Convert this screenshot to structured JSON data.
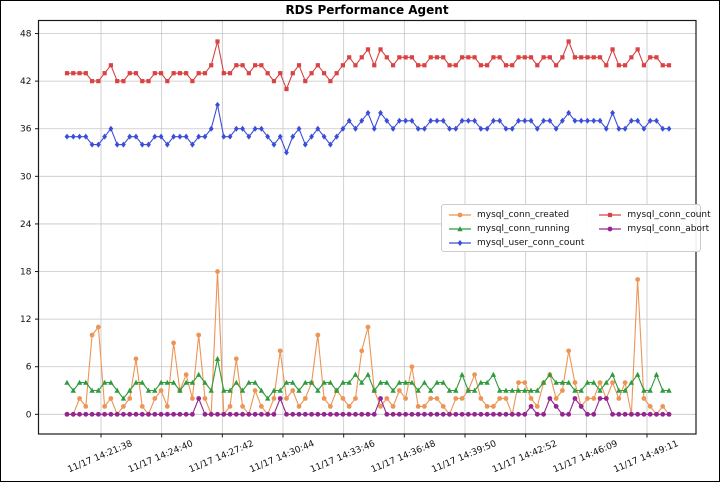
{
  "chart_data": {
    "type": "line",
    "title": "RDS Performance Agent",
    "xlabel": "",
    "ylabel": "",
    "grid": true,
    "legend_position": "center-right",
    "ylim": [
      -2.5,
      49.6
    ],
    "y_tick_labels": [
      "0",
      "6",
      "12",
      "18",
      "24",
      "30",
      "36",
      "42",
      "48"
    ],
    "y_ticks": [
      0,
      6,
      12,
      18,
      24,
      30,
      36,
      42,
      48
    ],
    "x_tick_labels": [
      "11/17 14:21:38",
      "11/17 14:24:40",
      "11/17 14:27:42",
      "11/17 14:30:44",
      "11/17 14:33:46",
      "11/17 14:36:48",
      "11/17 14:39:50",
      "11/17 14:42:52",
      "11/17 14:46:09",
      "11/17 14:49:11"
    ],
    "sample_interval_seconds": 19,
    "legend_columns": [
      [
        0,
        1,
        2
      ],
      [
        3,
        4
      ]
    ],
    "series": [
      {
        "name": "mysql_conn_created",
        "color": "#EC9556",
        "marker": "circle",
        "values": [
          0,
          0,
          2,
          1,
          10,
          11,
          1,
          2,
          0,
          1,
          2,
          7,
          1,
          0,
          2,
          3,
          1,
          9,
          3,
          5,
          2,
          10,
          2,
          0,
          18,
          0,
          1,
          7,
          1,
          0,
          3,
          1,
          0,
          2,
          8,
          2,
          3,
          1,
          2,
          4,
          10,
          2,
          1,
          3,
          2,
          1,
          2,
          8,
          11,
          3,
          1,
          2,
          1,
          3,
          2,
          6,
          1,
          1,
          2,
          2,
          1,
          0,
          2,
          2,
          3,
          5,
          2,
          1,
          1,
          2,
          2,
          0,
          4,
          4,
          2,
          1,
          4,
          5,
          2,
          3,
          8,
          4,
          1,
          2,
          2,
          4,
          2,
          4,
          2,
          4,
          0,
          17,
          2,
          1,
          0,
          1,
          0
        ]
      },
      {
        "name": "mysql_conn_running",
        "color": "#2E9B3D",
        "marker": "triangle",
        "values": [
          4,
          3,
          4,
          4,
          3,
          3,
          4,
          4,
          3,
          2,
          3,
          4,
          4,
          3,
          3,
          4,
          4,
          4,
          3,
          4,
          4,
          5,
          4,
          3,
          7,
          3,
          3,
          4,
          3,
          4,
          4,
          3,
          2,
          3,
          3,
          4,
          4,
          3,
          4,
          4,
          3,
          4,
          4,
          3,
          4,
          4,
          5,
          4,
          5,
          3,
          4,
          4,
          3,
          4,
          4,
          4,
          3,
          4,
          3,
          4,
          4,
          3,
          3,
          5,
          3,
          3,
          4,
          4,
          5,
          3,
          3,
          3,
          3,
          3,
          3,
          3,
          4,
          5,
          4,
          4,
          4,
          3,
          3,
          4,
          4,
          3,
          4,
          5,
          3,
          3,
          4,
          5,
          3,
          3,
          5,
          3,
          3
        ]
      },
      {
        "name": "mysql_user_conn_count",
        "color": "#3B4EDA",
        "marker": "diamond",
        "values": [
          35,
          35,
          35,
          35,
          34,
          34,
          35,
          36,
          34,
          34,
          35,
          35,
          34,
          34,
          35,
          35,
          34,
          35,
          35,
          35,
          34,
          35,
          35,
          36,
          39,
          35,
          35,
          36,
          36,
          35,
          36,
          36,
          35,
          34,
          35,
          33,
          35,
          36,
          34,
          35,
          36,
          35,
          34,
          35,
          36,
          37,
          36,
          37,
          38,
          36,
          38,
          37,
          36,
          37,
          37,
          37,
          36,
          36,
          37,
          37,
          37,
          36,
          36,
          37,
          37,
          37,
          36,
          36,
          37,
          37,
          36,
          36,
          37,
          37,
          37,
          36,
          37,
          37,
          36,
          37,
          38,
          37,
          37,
          37,
          37,
          37,
          36,
          38,
          36,
          36,
          37,
          37,
          36,
          37,
          37,
          36,
          36
        ]
      },
      {
        "name": "mysql_conn_count",
        "color": "#D84343",
        "marker": "square",
        "values": [
          43,
          43,
          43,
          43,
          42,
          42,
          43,
          44,
          42,
          42,
          43,
          43,
          42,
          42,
          43,
          43,
          42,
          43,
          43,
          43,
          42,
          43,
          43,
          44,
          47,
          43,
          43,
          44,
          44,
          43,
          44,
          44,
          43,
          42,
          43,
          41,
          43,
          44,
          42,
          43,
          44,
          43,
          42,
          43,
          44,
          45,
          44,
          45,
          46,
          44,
          46,
          45,
          44,
          45,
          45,
          45,
          44,
          44,
          45,
          45,
          45,
          44,
          44,
          45,
          45,
          45,
          44,
          44,
          45,
          45,
          44,
          44,
          45,
          45,
          45,
          44,
          45,
          45,
          44,
          45,
          47,
          45,
          45,
          45,
          45,
          45,
          44,
          46,
          44,
          44,
          45,
          46,
          44,
          45,
          45,
          44,
          44
        ]
      },
      {
        "name": "mysql_conn_abort",
        "color": "#93278F",
        "marker": "circle",
        "values": [
          0,
          0,
          0,
          0,
          0,
          0,
          0,
          0,
          0,
          0,
          0,
          0,
          0,
          0,
          0,
          0,
          0,
          0,
          0,
          0,
          0,
          2,
          0,
          0,
          0,
          0,
          0,
          0,
          0,
          0,
          0,
          0,
          0,
          0,
          2,
          0,
          0,
          0,
          0,
          0,
          0,
          0,
          0,
          0,
          0,
          0,
          0,
          0,
          0,
          0,
          2,
          0,
          0,
          0,
          0,
          0,
          0,
          0,
          0,
          0,
          0,
          0,
          0,
          0,
          0,
          0,
          0,
          0,
          0,
          0,
          0,
          0,
          0,
          0,
          1,
          0,
          0,
          2,
          1,
          0,
          0,
          2,
          1,
          0,
          0,
          2,
          2,
          0,
          0,
          0,
          0,
          0,
          0,
          0,
          0,
          0,
          0
        ]
      }
    ]
  }
}
